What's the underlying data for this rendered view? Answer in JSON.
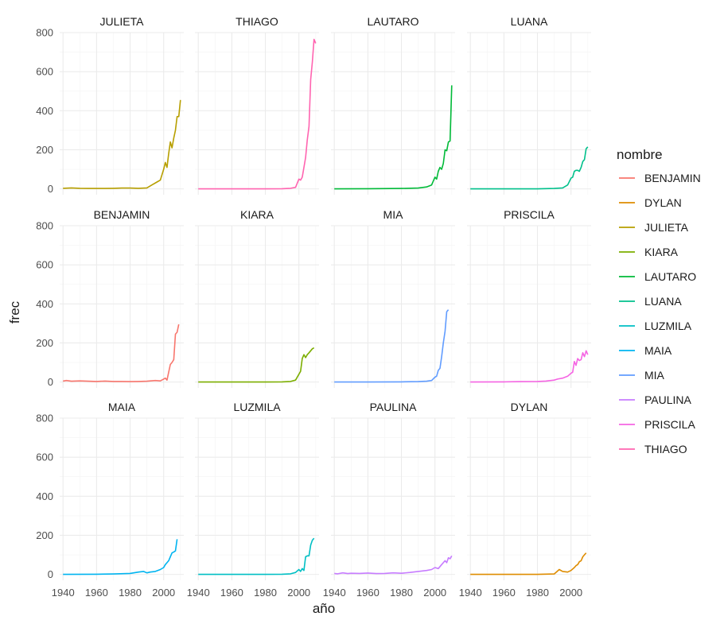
{
  "chart_data": {
    "type": "line",
    "layout": "facet_wrap",
    "xlabel": "año",
    "ylabel": "frec",
    "xlim": [
      1938,
      2012
    ],
    "ylim": [
      -30,
      800
    ],
    "x_ticks": [
      1940,
      1960,
      1980,
      2000
    ],
    "y_ticks": [
      0,
      200,
      400,
      600,
      800
    ],
    "legend": {
      "title": "nombre",
      "position": "right",
      "entries": [
        {
          "name": "BENJAMIN",
          "color": "#F8766D"
        },
        {
          "name": "DYLAN",
          "color": "#DE8C00"
        },
        {
          "name": "JULIETA",
          "color": "#B79F00"
        },
        {
          "name": "KIARA",
          "color": "#7CAE00"
        },
        {
          "name": "LAUTARO",
          "color": "#00BA38"
        },
        {
          "name": "LUANA",
          "color": "#00C08B"
        },
        {
          "name": "LUZMILA",
          "color": "#00BFC4"
        },
        {
          "name": "MAIA",
          "color": "#00B4F0"
        },
        {
          "name": "MIA",
          "color": "#619CFF"
        },
        {
          "name": "PAULINA",
          "color": "#C77CFF"
        },
        {
          "name": "PRISCILA",
          "color": "#F564E3"
        },
        {
          "name": "THIAGO",
          "color": "#FF64B0"
        }
      ]
    },
    "panels": [
      {
        "name": "JULIETA",
        "color": "#B79F00",
        "points": [
          [
            1940,
            3
          ],
          [
            1945,
            5
          ],
          [
            1950,
            3
          ],
          [
            1955,
            2
          ],
          [
            1960,
            2
          ],
          [
            1965,
            2
          ],
          [
            1970,
            3
          ],
          [
            1975,
            4
          ],
          [
            1980,
            4
          ],
          [
            1985,
            3
          ],
          [
            1990,
            5
          ],
          [
            1993,
            20
          ],
          [
            1996,
            35
          ],
          [
            1998,
            45
          ],
          [
            2000,
            100
          ],
          [
            2001,
            135
          ],
          [
            2002,
            110
          ],
          [
            2003,
            180
          ],
          [
            2004,
            240
          ],
          [
            2005,
            210
          ],
          [
            2006,
            260
          ],
          [
            2007,
            300
          ],
          [
            2008,
            370
          ],
          [
            2009,
            370
          ],
          [
            2010,
            455
          ]
        ]
      },
      {
        "name": "THIAGO",
        "color": "#FF64B0",
        "points": [
          [
            1940,
            0
          ],
          [
            1960,
            0
          ],
          [
            1980,
            0
          ],
          [
            1990,
            1
          ],
          [
            1995,
            3
          ],
          [
            1998,
            8
          ],
          [
            2000,
            50
          ],
          [
            2001,
            45
          ],
          [
            2002,
            60
          ],
          [
            2003,
            110
          ],
          [
            2004,
            160
          ],
          [
            2005,
            250
          ],
          [
            2006,
            320
          ],
          [
            2007,
            560
          ],
          [
            2008,
            650
          ],
          [
            2009,
            765
          ],
          [
            2010,
            745
          ]
        ]
      },
      {
        "name": "LAUTARO",
        "color": "#00BA38",
        "points": [
          [
            1940,
            0
          ],
          [
            1960,
            1
          ],
          [
            1980,
            2
          ],
          [
            1990,
            4
          ],
          [
            1995,
            10
          ],
          [
            1998,
            20
          ],
          [
            2000,
            60
          ],
          [
            2001,
            50
          ],
          [
            2002,
            90
          ],
          [
            2003,
            110
          ],
          [
            2004,
            100
          ],
          [
            2005,
            130
          ],
          [
            2006,
            200
          ],
          [
            2007,
            195
          ],
          [
            2008,
            240
          ],
          [
            2009,
            245
          ],
          [
            2010,
            530
          ]
        ]
      },
      {
        "name": "LUANA",
        "color": "#00C08B",
        "points": [
          [
            1940,
            0
          ],
          [
            1960,
            0
          ],
          [
            1980,
            0
          ],
          [
            1990,
            2
          ],
          [
            1995,
            5
          ],
          [
            1998,
            20
          ],
          [
            2000,
            55
          ],
          [
            2001,
            60
          ],
          [
            2002,
            90
          ],
          [
            2003,
            95
          ],
          [
            2004,
            95
          ],
          [
            2005,
            90
          ],
          [
            2006,
            110
          ],
          [
            2007,
            140
          ],
          [
            2008,
            150
          ],
          [
            2009,
            205
          ],
          [
            2010,
            215
          ]
        ]
      },
      {
        "name": "BENJAMIN",
        "color": "#F8766D",
        "points": [
          [
            1940,
            5
          ],
          [
            1942,
            8
          ],
          [
            1945,
            4
          ],
          [
            1950,
            6
          ],
          [
            1955,
            4
          ],
          [
            1960,
            3
          ],
          [
            1965,
            5
          ],
          [
            1970,
            3
          ],
          [
            1975,
            3
          ],
          [
            1980,
            2
          ],
          [
            1985,
            3
          ],
          [
            1990,
            4
          ],
          [
            1995,
            8
          ],
          [
            1998,
            6
          ],
          [
            2000,
            15
          ],
          [
            2001,
            20
          ],
          [
            2002,
            10
          ],
          [
            2003,
            50
          ],
          [
            2004,
            90
          ],
          [
            2005,
            100
          ],
          [
            2006,
            115
          ],
          [
            2007,
            245
          ],
          [
            2008,
            255
          ],
          [
            2009,
            295
          ]
        ]
      },
      {
        "name": "KIARA",
        "color": "#7CAE00",
        "points": [
          [
            1940,
            0
          ],
          [
            1960,
            0
          ],
          [
            1980,
            0
          ],
          [
            1990,
            1
          ],
          [
            1995,
            3
          ],
          [
            1998,
            10
          ],
          [
            2000,
            40
          ],
          [
            2001,
            55
          ],
          [
            2002,
            120
          ],
          [
            2003,
            140
          ],
          [
            2004,
            125
          ],
          [
            2005,
            140
          ],
          [
            2006,
            150
          ],
          [
            2007,
            160
          ],
          [
            2008,
            170
          ],
          [
            2009,
            175
          ]
        ]
      },
      {
        "name": "MIA",
        "color": "#619CFF",
        "points": [
          [
            1940,
            0
          ],
          [
            1960,
            0
          ],
          [
            1980,
            1
          ],
          [
            1990,
            2
          ],
          [
            1995,
            4
          ],
          [
            1998,
            8
          ],
          [
            2000,
            25
          ],
          [
            2001,
            30
          ],
          [
            2002,
            60
          ],
          [
            2003,
            70
          ],
          [
            2004,
            130
          ],
          [
            2005,
            200
          ],
          [
            2006,
            260
          ],
          [
            2007,
            360
          ],
          [
            2008,
            370
          ]
        ]
      },
      {
        "name": "PRISCILA",
        "color": "#F564E3",
        "points": [
          [
            1940,
            0
          ],
          [
            1960,
            1
          ],
          [
            1970,
            2
          ],
          [
            1980,
            3
          ],
          [
            1985,
            5
          ],
          [
            1990,
            10
          ],
          [
            1992,
            15
          ],
          [
            1995,
            20
          ],
          [
            1998,
            30
          ],
          [
            2000,
            45
          ],
          [
            2001,
            50
          ],
          [
            2002,
            105
          ],
          [
            2003,
            85
          ],
          [
            2004,
            120
          ],
          [
            2005,
            110
          ],
          [
            2006,
            115
          ],
          [
            2007,
            150
          ],
          [
            2008,
            130
          ],
          [
            2009,
            160
          ],
          [
            2010,
            140
          ]
        ]
      },
      {
        "name": "MAIA",
        "color": "#00B4F0",
        "points": [
          [
            1940,
            0
          ],
          [
            1960,
            1
          ],
          [
            1970,
            2
          ],
          [
            1980,
            5
          ],
          [
            1985,
            12
          ],
          [
            1988,
            15
          ],
          [
            1990,
            8
          ],
          [
            1992,
            12
          ],
          [
            1995,
            15
          ],
          [
            1998,
            25
          ],
          [
            2000,
            35
          ],
          [
            2001,
            50
          ],
          [
            2002,
            60
          ],
          [
            2003,
            70
          ],
          [
            2004,
            90
          ],
          [
            2005,
            110
          ],
          [
            2006,
            115
          ],
          [
            2007,
            120
          ],
          [
            2008,
            180
          ]
        ]
      },
      {
        "name": "LUZMILA",
        "color": "#00BFC4",
        "points": [
          [
            1940,
            0
          ],
          [
            1960,
            0
          ],
          [
            1980,
            0
          ],
          [
            1990,
            1
          ],
          [
            1995,
            3
          ],
          [
            1998,
            10
          ],
          [
            2000,
            25
          ],
          [
            2001,
            15
          ],
          [
            2002,
            30
          ],
          [
            2003,
            20
          ],
          [
            2004,
            90
          ],
          [
            2005,
            95
          ],
          [
            2006,
            95
          ],
          [
            2007,
            150
          ],
          [
            2008,
            175
          ],
          [
            2009,
            185
          ]
        ]
      },
      {
        "name": "PAULINA",
        "color": "#C77CFF",
        "points": [
          [
            1940,
            5
          ],
          [
            1942,
            3
          ],
          [
            1945,
            8
          ],
          [
            1948,
            4
          ],
          [
            1950,
            6
          ],
          [
            1955,
            5
          ],
          [
            1960,
            7
          ],
          [
            1965,
            4
          ],
          [
            1970,
            5
          ],
          [
            1975,
            8
          ],
          [
            1980,
            6
          ],
          [
            1985,
            10
          ],
          [
            1990,
            15
          ],
          [
            1995,
            20
          ],
          [
            1998,
            25
          ],
          [
            2000,
            35
          ],
          [
            2002,
            30
          ],
          [
            2004,
            50
          ],
          [
            2006,
            70
          ],
          [
            2007,
            60
          ],
          [
            2008,
            85
          ],
          [
            2009,
            80
          ],
          [
            2010,
            95
          ]
        ]
      },
      {
        "name": "DYLAN",
        "color": "#DE8C00",
        "points": [
          [
            1940,
            0
          ],
          [
            1960,
            0
          ],
          [
            1980,
            0
          ],
          [
            1990,
            2
          ],
          [
            1993,
            25
          ],
          [
            1995,
            15
          ],
          [
            1998,
            12
          ],
          [
            2000,
            20
          ],
          [
            2002,
            35
          ],
          [
            2003,
            45
          ],
          [
            2004,
            50
          ],
          [
            2005,
            65
          ],
          [
            2006,
            70
          ],
          [
            2007,
            90
          ],
          [
            2008,
            100
          ],
          [
            2009,
            110
          ]
        ]
      }
    ]
  }
}
